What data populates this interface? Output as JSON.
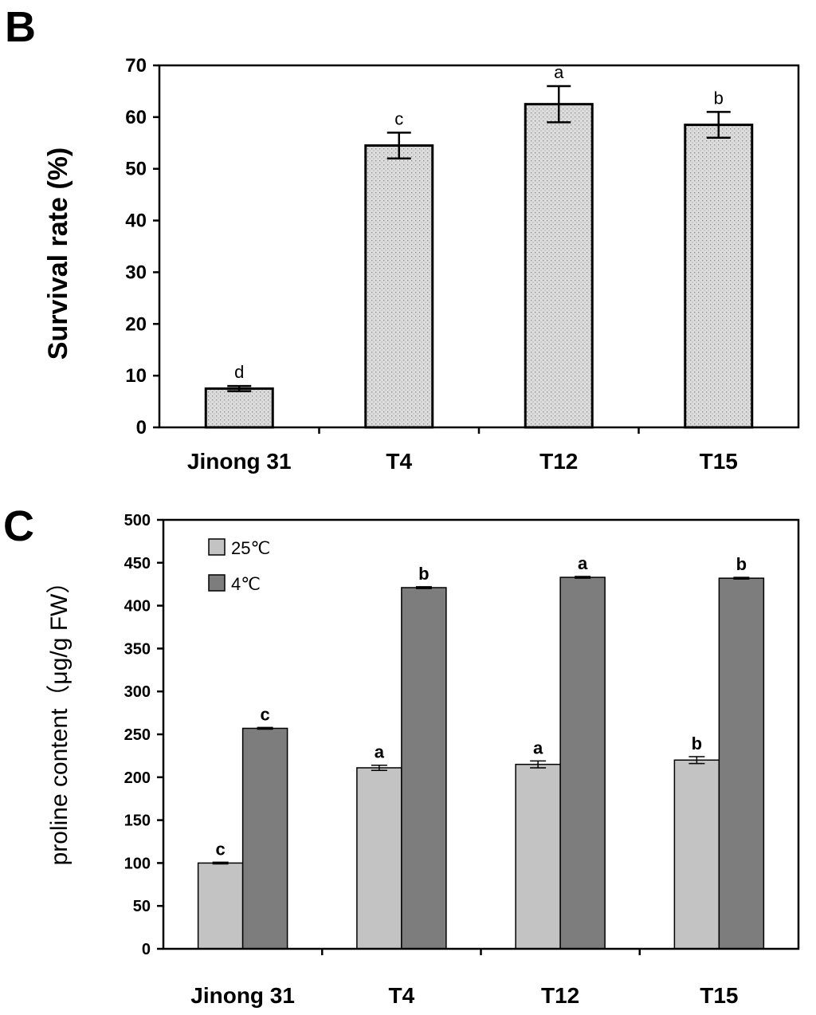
{
  "colors": {
    "bar_b_fill": "#d4d4d4",
    "bar_25": "#c3c3c3",
    "bar_4": "#7d7d7d",
    "axis": "#000000"
  },
  "chart_data": [
    {
      "panel": "B",
      "type": "bar",
      "title": "",
      "ylabel": "Survival rate (%)",
      "xlabel": "",
      "ylim": [
        0,
        70
      ],
      "yticks": [
        0,
        10,
        20,
        30,
        40,
        50,
        60,
        70
      ],
      "categories": [
        "Jinong 31",
        "T4",
        "T12",
        "T15"
      ],
      "values": [
        7.5,
        54.5,
        62.5,
        58.5
      ],
      "errors": [
        0.5,
        2.5,
        3.5,
        2.5
      ],
      "significance": [
        "d",
        "c",
        "a",
        "b"
      ],
      "grid": false,
      "legend": "none"
    },
    {
      "panel": "C",
      "type": "bar",
      "title": "",
      "ylabel": "proline content（μg/g FW）",
      "xlabel": "",
      "ylim": [
        0,
        500
      ],
      "yticks": [
        0,
        50,
        100,
        150,
        200,
        250,
        300,
        350,
        400,
        450,
        500
      ],
      "categories": [
        "Jinong 31",
        "T4",
        "T12",
        "T15"
      ],
      "series": [
        {
          "name": "25℃",
          "values": [
            100,
            211,
            215,
            220
          ],
          "errors": [
            1,
            3,
            4,
            4
          ],
          "significance": [
            "c",
            "a",
            "a",
            "b"
          ]
        },
        {
          "name": "4℃",
          "values": [
            257,
            421,
            433,
            432
          ],
          "errors": [
            1,
            1,
            1,
            1
          ],
          "significance": [
            "c",
            "b",
            "a",
            "b"
          ]
        }
      ],
      "grid": false,
      "legend": "top-left"
    }
  ]
}
